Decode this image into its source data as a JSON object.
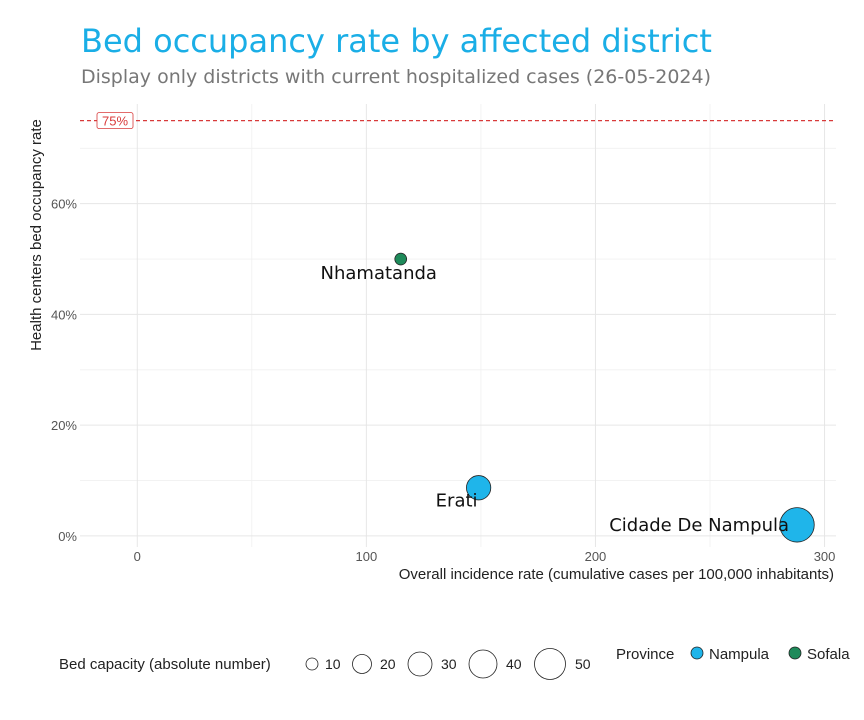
{
  "title": "Bed occupancy rate by affected district",
  "subtitle": "Display only districts with current hospitalized cases (26-05-2024)",
  "colors": {
    "title": "#1aaee6",
    "Nampula": "#1fb5ea",
    "Sofala": "#1e8a5a",
    "threshold": "#d83a3a"
  },
  "chart_data": {
    "type": "scatter",
    "xlabel": "Overall incidence rate (cumulative cases per 100,000 inhabitants)",
    "ylabel": "Health centers bed occupancy rate",
    "xlim": [
      -25,
      305
    ],
    "ylim": [
      -2,
      78
    ],
    "x_ticks": [
      0,
      100,
      200,
      300
    ],
    "y_ticks": [
      0,
      20,
      40,
      60
    ],
    "y_tick_labels": [
      "0%",
      "20%",
      "40%",
      "60%"
    ],
    "grid": true,
    "threshold": {
      "value": 75,
      "label": "75%"
    },
    "points": [
      {
        "label": "Nhamatanda",
        "x": 115,
        "y": 50,
        "province": "Sofala",
        "bed_capacity": 2
      },
      {
        "label": "Erati",
        "x": 149,
        "y": 8.7,
        "province": "Nampula",
        "bed_capacity": 20
      },
      {
        "label": "Cidade De Nampula",
        "x": 288,
        "y": 2,
        "province": "Nampula",
        "bed_capacity": 48
      }
    ],
    "legend": {
      "size": {
        "title": "Bed capacity (absolute number)",
        "values": [
          10,
          20,
          30,
          40,
          50
        ]
      },
      "color": {
        "title": "Province",
        "items": [
          "Nampula",
          "Sofala"
        ]
      },
      "position": "bottom"
    }
  }
}
